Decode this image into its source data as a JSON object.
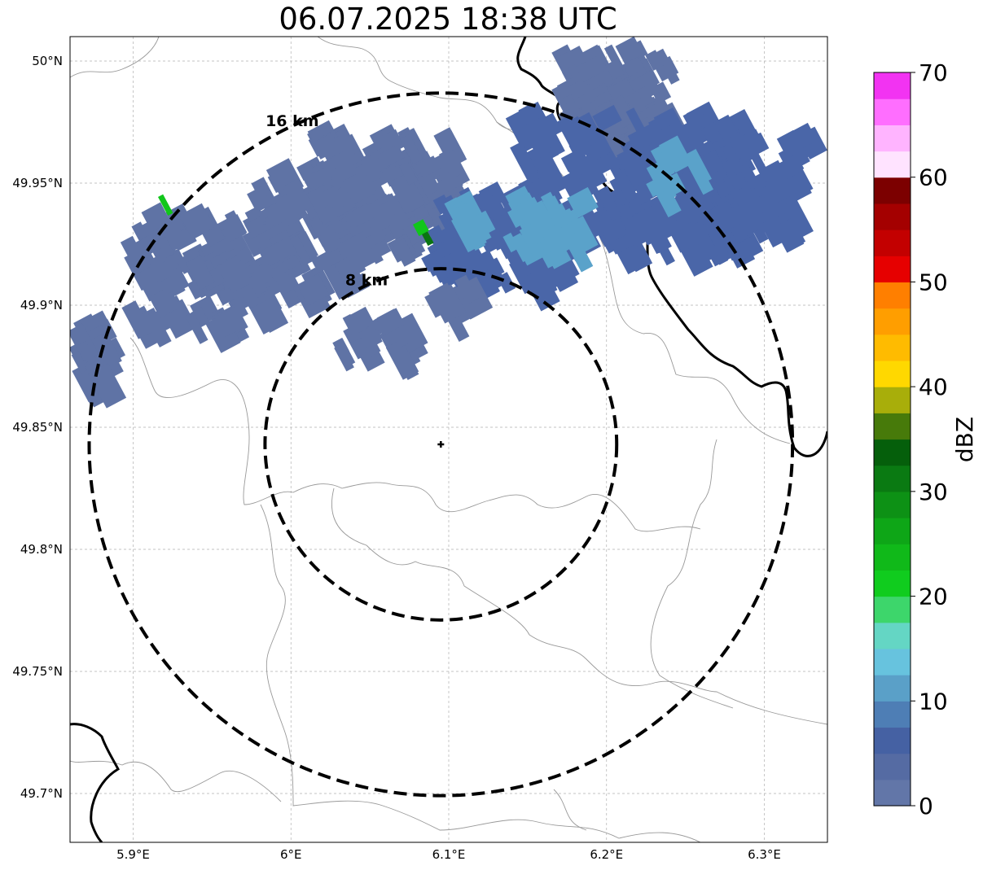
{
  "title": "06.07.2025 18:38 UTC",
  "map": {
    "lon_range": [
      5.86,
      6.34
    ],
    "lat_range": [
      49.68,
      50.01
    ],
    "center": {
      "lon": 6.095,
      "lat": 49.843
    },
    "lon_ticks": [
      {
        "value": 5.9,
        "label": "5.9°E"
      },
      {
        "value": 6.0,
        "label": "6°E"
      },
      {
        "value": 6.1,
        "label": "6.1°E"
      },
      {
        "value": 6.2,
        "label": "6.2°E"
      },
      {
        "value": 6.3,
        "label": "6.3°E"
      }
    ],
    "lat_ticks": [
      {
        "value": 50.0,
        "label": "50°N"
      },
      {
        "value": 49.95,
        "label": "49.95°N"
      },
      {
        "value": 49.9,
        "label": "49.9°N"
      },
      {
        "value": 49.85,
        "label": "49.85°N"
      },
      {
        "value": 49.8,
        "label": "49.8°N"
      },
      {
        "value": 49.75,
        "label": "49.75°N"
      },
      {
        "value": 49.7,
        "label": "49.7°N"
      }
    ],
    "range_rings": [
      {
        "radius_km": 8,
        "label": "8 km"
      },
      {
        "radius_km": 16,
        "label": "16 km"
      }
    ],
    "colors": {
      "weak_echo": "#5f73a5",
      "moderate_echo": "#4a66a8",
      "light_blue_echo": "#5aa2ca",
      "green_echo": "#11c61b",
      "dark_green_echo": "#0a7512",
      "border": "#000000",
      "admin_line": "#999999",
      "grid": "#b0b0b0"
    }
  },
  "colorbar": {
    "label": "dBZ",
    "min": 0,
    "max": 70,
    "tick_values": [
      0,
      10,
      20,
      30,
      40,
      50,
      60,
      70
    ],
    "tick_labels": [
      "0",
      "10",
      "20",
      "30",
      "40",
      "50",
      "60",
      "70"
    ],
    "colors": [
      "#6276a8",
      "#556ba3",
      "#4561a3",
      "#4e7eb5",
      "#5aa0c8",
      "#67c3de",
      "#64d6c4",
      "#3dd66b",
      "#10cc1e",
      "#10b919",
      "#0ea617",
      "#0d9115",
      "#0a7a12",
      "#055f0b",
      "#477a0a",
      "#a8ae0a",
      "#ffd800",
      "#ffbb00",
      "#ff9e00",
      "#ff7f00",
      "#e60000",
      "#c30000",
      "#a40000",
      "#7c0000",
      "#ffe3ff",
      "#ffb4ff",
      "#ff6eff",
      "#f233f2"
    ]
  }
}
